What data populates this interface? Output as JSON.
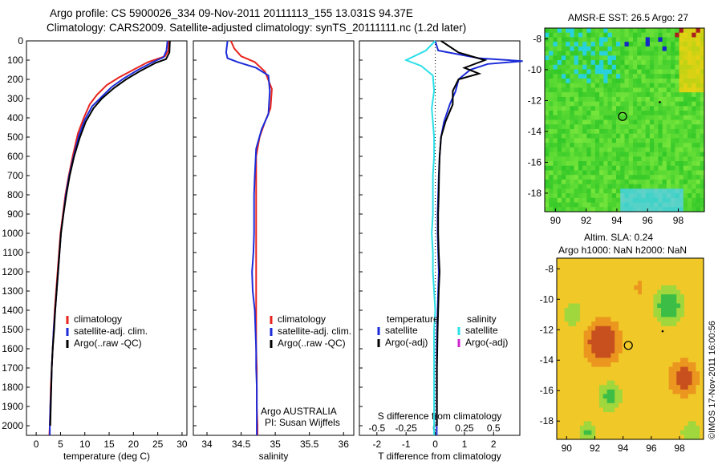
{
  "header": {
    "title_line1": "Argo profile: CS 5900026_334 09-Nov-2011 20111113_155 13.031S 94.37E",
    "title_line2": "Climatology: CARS2009. Satellite-adjusted climatology: synTS_20111111.nc (1.2d later)"
  },
  "colors": {
    "climatology": "#e8241c",
    "satellite": "#1c2cd8",
    "argo": "#000000",
    "argo_adj_s": "#d024d0",
    "satellite_s": "#2ce0e8"
  },
  "depth_axis": {
    "ticks": [
      0,
      100,
      200,
      300,
      400,
      500,
      600,
      700,
      800,
      900,
      1000,
      1100,
      1200,
      1300,
      1400,
      1500,
      1600,
      1700,
      1800,
      1900,
      2000
    ]
  },
  "chart_data": [
    {
      "id": "temperature",
      "type": "line",
      "xlabel": "temperature (deg C)",
      "xlim": [
        -2,
        31
      ],
      "ylim": [
        2050,
        0
      ],
      "xticks": [
        0,
        5,
        10,
        15,
        20,
        25,
        30
      ],
      "legend": {
        "placement": "bottom-right",
        "items": [
          "climatology",
          "satellite-adj. clim.",
          "Argo(..raw -QC)"
        ]
      },
      "series": [
        {
          "name": "climatology",
          "color": "#e8241c",
          "points": [
            [
              27.3,
              0
            ],
            [
              27.2,
              50
            ],
            [
              26.5,
              80
            ],
            [
              23,
              110
            ],
            [
              20,
              150
            ],
            [
              17,
              190
            ],
            [
              14.5,
              230
            ],
            [
              12.5,
              280
            ],
            [
              11,
              330
            ],
            [
              9.8,
              400
            ],
            [
              8.6,
              480
            ],
            [
              7.5,
              600
            ],
            [
              6.7,
              700
            ],
            [
              6,
              800
            ],
            [
              5.5,
              900
            ],
            [
              5,
              1000
            ],
            [
              4.7,
              1100
            ],
            [
              4.4,
              1200
            ],
            [
              4.1,
              1300
            ],
            [
              3.8,
              1400
            ],
            [
              3.6,
              1500
            ],
            [
              3.4,
              1600
            ],
            [
              3.2,
              1700
            ],
            [
              3,
              1800
            ],
            [
              2.9,
              1900
            ],
            [
              2.8,
              2000
            ],
            [
              2.7,
              2050
            ]
          ]
        },
        {
          "name": "satellite-adj. clim.",
          "color": "#1c2cd8",
          "points": [
            [
              27,
              0
            ],
            [
              26.8,
              50
            ],
            [
              26.2,
              85
            ],
            [
              24,
              110
            ],
            [
              21,
              150
            ],
            [
              18,
              195
            ],
            [
              15.5,
              240
            ],
            [
              13.5,
              290
            ],
            [
              11.5,
              340
            ],
            [
              10,
              410
            ],
            [
              8.8,
              490
            ],
            [
              7.7,
              600
            ],
            [
              6.8,
              700
            ],
            [
              6.1,
              800
            ],
            [
              5.6,
              900
            ],
            [
              5.1,
              1000
            ],
            [
              4.8,
              1100
            ],
            [
              4.5,
              1200
            ],
            [
              4.2,
              1300
            ],
            [
              3.9,
              1400
            ],
            [
              3.6,
              1500
            ],
            [
              3.4,
              1600
            ],
            [
              3.2,
              1700
            ],
            [
              3.1,
              1800
            ],
            [
              2.9,
              1900
            ],
            [
              2.8,
              2000
            ],
            [
              2.8,
              2050
            ]
          ]
        },
        {
          "name": "Argo(..raw -QC)",
          "color": "#000000",
          "points": [
            [
              27.5,
              0
            ],
            [
              27.4,
              60
            ],
            [
              26.7,
              95
            ],
            [
              24.5,
              115
            ],
            [
              21.5,
              155
            ],
            [
              18.5,
              200
            ],
            [
              16,
              245
            ],
            [
              13.5,
              300
            ],
            [
              11.8,
              350
            ],
            [
              10.2,
              420
            ],
            [
              9,
              500
            ],
            [
              7.8,
              600
            ],
            [
              6.9,
              700
            ],
            [
              6.2,
              800
            ],
            [
              5.6,
              900
            ],
            [
              5.1,
              1000
            ],
            [
              4.8,
              1100
            ],
            [
              4.5,
              1200
            ],
            [
              4.2,
              1300
            ],
            [
              3.9,
              1400
            ],
            [
              3.7,
              1500
            ],
            [
              3.4,
              1600
            ],
            [
              3.2,
              1700
            ],
            [
              3.1,
              1800
            ],
            [
              3,
              1900
            ],
            [
              2.9,
              2000
            ]
          ]
        }
      ]
    },
    {
      "id": "salinity",
      "type": "line",
      "xlabel": "salinity",
      "xlim": [
        33.8,
        36.15
      ],
      "ylim": [
        2050,
        0
      ],
      "xticks": [
        34,
        34.5,
        35,
        35.5,
        36
      ],
      "legend": {
        "placement": "bottom-right",
        "items": [
          "climatology",
          "satellite-adj. clim.",
          "Argo(..raw -QC)"
        ]
      },
      "annotation": [
        "Argo AUSTRALIA",
        "PI: Susan Wijffels"
      ],
      "series": [
        {
          "name": "climatology",
          "color": "#e8241c",
          "points": [
            [
              34.35,
              0
            ],
            [
              34.4,
              40
            ],
            [
              34.5,
              80
            ],
            [
              34.7,
              110
            ],
            [
              34.85,
              160
            ],
            [
              34.95,
              250
            ],
            [
              34.93,
              350
            ],
            [
              34.85,
              420
            ],
            [
              34.77,
              500
            ],
            [
              34.72,
              600
            ],
            [
              34.72,
              700
            ],
            [
              34.72,
              800
            ],
            [
              34.72,
              900
            ],
            [
              34.72,
              1000
            ],
            [
              34.72,
              1100
            ],
            [
              34.72,
              1200
            ],
            [
              34.72,
              1300
            ],
            [
              34.72,
              1400
            ],
            [
              34.72,
              1500
            ],
            [
              34.72,
              1600
            ],
            [
              34.73,
              1700
            ],
            [
              34.73,
              1800
            ],
            [
              34.73,
              1900
            ],
            [
              34.74,
              2000
            ],
            [
              34.74,
              2050
            ]
          ]
        },
        {
          "name": "satellite-adj. clim.",
          "color": "#1c2cd8",
          "points": [
            [
              34.3,
              0
            ],
            [
              34.28,
              60
            ],
            [
              34.3,
              90
            ],
            [
              34.45,
              110
            ],
            [
              34.72,
              140
            ],
            [
              34.9,
              180
            ],
            [
              34.92,
              260
            ],
            [
              34.9,
              380
            ],
            [
              34.8,
              460
            ],
            [
              34.72,
              560
            ],
            [
              34.7,
              700
            ],
            [
              34.69,
              800
            ],
            [
              34.69,
              900
            ],
            [
              34.69,
              1000
            ],
            [
              34.68,
              1100
            ],
            [
              34.66,
              1200
            ],
            [
              34.67,
              1300
            ],
            [
              34.7,
              1400
            ],
            [
              34.71,
              1500
            ],
            [
              34.72,
              1600
            ],
            [
              34.72,
              1700
            ],
            [
              34.73,
              1800
            ],
            [
              34.73,
              1900
            ],
            [
              34.73,
              2000
            ],
            [
              34.73,
              2050
            ]
          ]
        },
        {
          "name": "Argo(..raw -QC)",
          "color": "#000000",
          "points": []
        }
      ]
    },
    {
      "id": "difference",
      "type": "line",
      "xlabel": "T difference from climatology",
      "xlabel2": "S difference from climatology",
      "xlim": [
        -2.6,
        2.9
      ],
      "xlim2": [
        -0.65,
        0.725
      ],
      "ylim": [
        2050,
        0
      ],
      "xticks": [
        -2,
        -1,
        0,
        1,
        2
      ],
      "xticks2": [
        -0.5,
        -0.25,
        0,
        0.25,
        0.5
      ],
      "legend": {
        "placement": "bottom",
        "temperature_heading": "temperature",
        "salinity_heading": "salinity",
        "items": [
          "satellite",
          "Argo(-adj)"
        ]
      },
      "series": [
        {
          "name": "temperature satellite",
          "color": "#1c2cd8",
          "units": "T",
          "points": [
            [
              0,
              0
            ],
            [
              0.1,
              50
            ],
            [
              1.5,
              90
            ],
            [
              3,
              105
            ],
            [
              1.8,
              120
            ],
            [
              1.2,
              150
            ],
            [
              0.8,
              200
            ],
            [
              0.7,
              260
            ],
            [
              0.5,
              330
            ],
            [
              0.3,
              420
            ],
            [
              0.2,
              500
            ],
            [
              0.15,
              600
            ],
            [
              0.12,
              700
            ],
            [
              0.1,
              800
            ],
            [
              0.08,
              900
            ],
            [
              0.08,
              1000
            ],
            [
              0.1,
              1100
            ],
            [
              0.12,
              1200
            ],
            [
              0.1,
              1300
            ],
            [
              0.08,
              1400
            ],
            [
              0.06,
              1500
            ],
            [
              0.05,
              1600
            ],
            [
              0.05,
              1700
            ],
            [
              0.05,
              1800
            ],
            [
              0.05,
              1900
            ],
            [
              0.05,
              2000
            ],
            [
              0.05,
              2050
            ]
          ]
        },
        {
          "name": "temperature Argo(-adj)",
          "color": "#000000",
          "units": "T",
          "points": [
            [
              0.2,
              0
            ],
            [
              0.8,
              60
            ],
            [
              1.7,
              100
            ],
            [
              1.0,
              140
            ],
            [
              1.5,
              170
            ],
            [
              0.8,
              200
            ],
            [
              0.6,
              260
            ],
            [
              0.6,
              330
            ],
            [
              0.35,
              420
            ],
            [
              0.2,
              500
            ],
            [
              0.15,
              600
            ],
            [
              0.13,
              700
            ],
            [
              0.12,
              800
            ],
            [
              0.1,
              900
            ],
            [
              0.1,
              1000
            ],
            [
              0.12,
              1100
            ],
            [
              0.15,
              1200
            ],
            [
              0.12,
              1300
            ],
            [
              0.1,
              1400
            ],
            [
              0.08,
              1500
            ],
            [
              0.07,
              1600
            ],
            [
              0.06,
              1700
            ],
            [
              0.06,
              1800
            ],
            [
              0.06,
              1900
            ],
            [
              0.06,
              2000
            ]
          ]
        },
        {
          "name": "salinity satellite",
          "color": "#2ce0e8",
          "units": "S",
          "points": [
            [
              0,
              0
            ],
            [
              -0.08,
              50
            ],
            [
              -0.25,
              100
            ],
            [
              -0.12,
              130
            ],
            [
              -0.02,
              180
            ],
            [
              -0.01,
              260
            ],
            [
              -0.03,
              350
            ],
            [
              -0.02,
              420
            ],
            [
              -0.01,
              500
            ],
            [
              -0.01,
              600
            ],
            [
              -0.02,
              700
            ],
            [
              -0.02,
              800
            ],
            [
              -0.02,
              900
            ],
            [
              -0.03,
              1000
            ],
            [
              -0.02,
              1100
            ],
            [
              -0.02,
              1200
            ],
            [
              -0.01,
              1300
            ],
            [
              0,
              1400
            ],
            [
              -0.01,
              1500
            ],
            [
              -0.01,
              1600
            ],
            [
              -0.01,
              1700
            ],
            [
              -0.01,
              1800
            ],
            [
              -0.01,
              1900
            ],
            [
              -0.01,
              2000
            ],
            [
              -0.01,
              2050
            ]
          ]
        },
        {
          "name": "salinity Argo(-adj)",
          "color": "#d024d0",
          "units": "S",
          "points": []
        }
      ]
    },
    {
      "id": "sst_map",
      "type": "heatmap",
      "title": "AMSR-E SST: 26.5 Argo: 27",
      "xticks": [
        90,
        92,
        94,
        96,
        98
      ],
      "yticks": [
        -8,
        -10,
        -12,
        -14,
        -16,
        -18
      ],
      "xlim": [
        89.3,
        99.7
      ],
      "ylim": [
        -19.2,
        -7.3
      ],
      "marker": {
        "lon": 94.37,
        "lat": -13.03
      },
      "dot": {
        "lon": 96.8,
        "lat": -12.1
      }
    },
    {
      "id": "sla_map",
      "type": "heatmap",
      "title": "Altim. SLA: 0.24",
      "subtitle": "Argo h1000: NaN h2000: NaN",
      "xticks": [
        90,
        92,
        94,
        96,
        98
      ],
      "yticks": [
        -8,
        -10,
        -12,
        -14,
        -16,
        -18
      ],
      "xlim": [
        89.3,
        99.7
      ],
      "ylim": [
        -19.2,
        -7.3
      ],
      "marker": {
        "lon": 94.37,
        "lat": -13.03
      },
      "dot": {
        "lon": 96.8,
        "lat": -12.1
      }
    }
  ],
  "footer": {
    "credit": "©IMOS 17-Nov-2011 16:00:56"
  }
}
